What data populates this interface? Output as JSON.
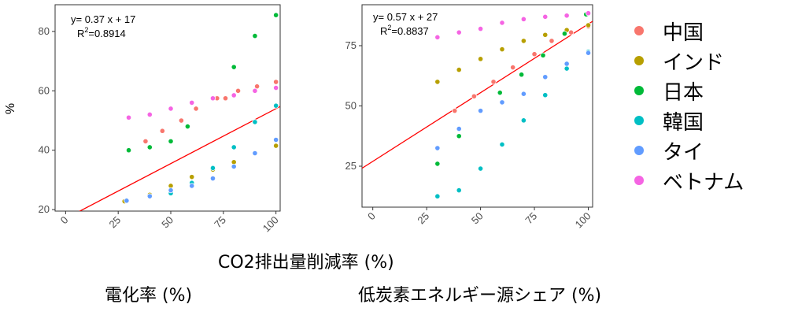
{
  "y_label": "%",
  "shared_xlabel": "CO2排出量削減率 (%)",
  "legend": [
    {
      "label": "中国",
      "color": "#F8766D"
    },
    {
      "label": "インド",
      "color": "#B79F00"
    },
    {
      "label": "日本",
      "color": "#00BA38"
    },
    {
      "label": "韓国",
      "color": "#00BFC4"
    },
    {
      "label": "タイ",
      "color": "#619CFF"
    },
    {
      "label": "ベトナム",
      "color": "#F564E3"
    }
  ],
  "chart_data": [
    {
      "type": "scatter",
      "title": "",
      "xlabel": "電化率 (%)",
      "ylabel": "%",
      "xlim": [
        -5,
        102
      ],
      "ylim": [
        19.5,
        89
      ],
      "xticks": [
        0,
        25,
        50,
        75,
        100
      ],
      "yticks": [
        20,
        40,
        60,
        80
      ],
      "grid": false,
      "equation": "y= 0.37 x + 17",
      "r2_label": "R",
      "r2_sup": "2",
      "r2_value": "=0.8914",
      "fit": {
        "slope": 0.37,
        "intercept": 17,
        "color": "#FF0000"
      },
      "series": [
        {
          "name": "中国",
          "color": "#F8766D",
          "points": [
            [
              38,
              43
            ],
            [
              46,
              46.5
            ],
            [
              55,
              50
            ],
            [
              62,
              54
            ],
            [
              72,
              57.5
            ],
            [
              76,
              57.5
            ],
            [
              82,
              60
            ],
            [
              91,
              61.5
            ],
            [
              100,
              63
            ]
          ]
        },
        {
          "name": "インド",
          "color": "#B79F00",
          "points": [
            [
              28,
              22.8
            ],
            [
              40,
              25
            ],
            [
              50,
              28
            ],
            [
              60,
              31
            ],
            [
              70,
              33.5
            ],
            [
              80,
              36
            ],
            [
              90,
              39
            ],
            [
              100,
              41.5
            ]
          ]
        },
        {
          "name": "日本",
          "color": "#00BA38",
          "points": [
            [
              30,
              40
            ],
            [
              40,
              41
            ],
            [
              50,
              43
            ],
            [
              58,
              48
            ],
            [
              70,
              57.5
            ],
            [
              80,
              68
            ],
            [
              90,
              78.5
            ],
            [
              100,
              85.5
            ]
          ]
        },
        {
          "name": "韓国",
          "color": "#00BFC4",
          "points": [
            [
              29,
              23.2
            ],
            [
              40,
              24.5
            ],
            [
              50,
              25.5
            ],
            [
              60,
              29
            ],
            [
              70,
              34
            ],
            [
              80,
              41
            ],
            [
              90,
              49.5
            ],
            [
              100,
              55
            ]
          ]
        },
        {
          "name": "タイ",
          "color": "#619CFF",
          "points": [
            [
              29,
              23
            ],
            [
              40,
              24.5
            ],
            [
              50,
              26.5
            ],
            [
              60,
              28
            ],
            [
              70,
              30.5
            ],
            [
              80,
              34.5
            ],
            [
              90,
              39
            ],
            [
              100,
              43.5
            ]
          ]
        },
        {
          "name": "ベトナム",
          "color": "#F564E3",
          "points": [
            [
              30,
              51
            ],
            [
              40,
              52
            ],
            [
              50,
              54
            ],
            [
              60,
              56
            ],
            [
              70,
              57.5
            ],
            [
              80,
              58.5
            ],
            [
              90,
              60
            ],
            [
              100,
              61
            ]
          ]
        }
      ]
    },
    {
      "type": "scatter",
      "title": "",
      "xlabel": "低炭素エネルギー源シェア (%)",
      "ylabel": "",
      "xlim": [
        -5,
        102
      ],
      "ylim": [
        8,
        92
      ],
      "xticks": [
        0,
        25,
        50,
        75,
        100
      ],
      "yticks": [
        25,
        50,
        75
      ],
      "grid": false,
      "equation": "y= 0.57 x + 27",
      "r2_label": "R",
      "r2_sup": "2",
      "r2_value": "=0.8837",
      "fit": {
        "slope": 0.57,
        "intercept": 27,
        "color": "#FF0000"
      },
      "series": [
        {
          "name": "中国",
          "color": "#F8766D",
          "points": [
            [
              38,
              48
            ],
            [
              47,
              54
            ],
            [
              56,
              60
            ],
            [
              65,
              66
            ],
            [
              75,
              71.5
            ],
            [
              83,
              77
            ],
            [
              92,
              80.5
            ],
            [
              100,
              83
            ]
          ]
        },
        {
          "name": "インド",
          "color": "#B79F00",
          "points": [
            [
              30,
              60
            ],
            [
              40,
              65
            ],
            [
              50,
              69.5
            ],
            [
              60,
              73.5
            ],
            [
              70,
              77
            ],
            [
              80,
              79.5
            ],
            [
              90,
              81.5
            ],
            [
              100,
              83.5
            ]
          ]
        },
        {
          "name": "日本",
          "color": "#00BA38",
          "points": [
            [
              30,
              26
            ],
            [
              40,
              37.5
            ],
            [
              59,
              55.5
            ],
            [
              69,
              63
            ],
            [
              79,
              71
            ],
            [
              89,
              80
            ],
            [
              99,
              88
            ]
          ]
        },
        {
          "name": "韓国",
          "color": "#00BFC4",
          "points": [
            [
              30,
              12.5
            ],
            [
              40,
              15
            ],
            [
              50,
              24
            ],
            [
              60,
              34
            ],
            [
              70,
              44
            ],
            [
              80,
              54.5
            ],
            [
              90,
              65.5
            ],
            [
              100,
              72.5
            ]
          ]
        },
        {
          "name": "タイ",
          "color": "#619CFF",
          "points": [
            [
              30,
              32.5
            ],
            [
              40,
              40.5
            ],
            [
              50,
              48
            ],
            [
              60,
              51.5
            ],
            [
              70,
              55
            ],
            [
              80,
              62
            ],
            [
              90,
              67.5
            ],
            [
              100,
              72
            ]
          ]
        },
        {
          "name": "ベトナム",
          "color": "#F564E3",
          "points": [
            [
              30,
              78.5
            ],
            [
              40,
              80.5
            ],
            [
              50,
              82
            ],
            [
              60,
              84.5
            ],
            [
              70,
              86
            ],
            [
              80,
              87
            ],
            [
              90,
              87.5
            ],
            [
              100,
              88.5
            ]
          ]
        }
      ]
    }
  ]
}
